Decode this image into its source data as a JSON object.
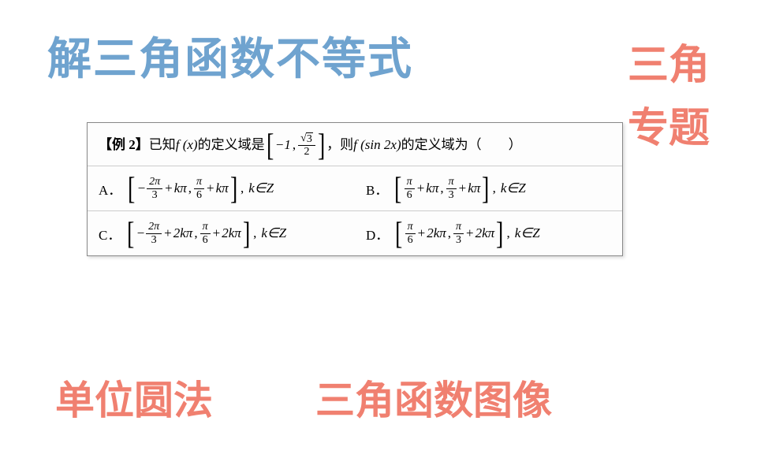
{
  "colors": {
    "title_blue": "#6fa3cf",
    "coral": "#f08070",
    "text_black": "#222222",
    "border": "#888888"
  },
  "title_main": "解三角函数不等式",
  "side_label_1": "三角",
  "side_label_2": "专题",
  "bottom_label_1": "单位圆法",
  "bottom_label_2": "三角函数图像",
  "problem": {
    "label": "【例 2】",
    "stem_part1": "已知 ",
    "fx": "f (x)",
    "stem_part2": " 的定义域是",
    "domain_lower": "−1",
    "domain_upper_num_sqrt": "3",
    "domain_upper_den": "2",
    "stem_part3": "，则 ",
    "fsin2x": "f (sin 2x)",
    "stem_part4": " 的定义域为（　　）",
    "options": {
      "A": {
        "label": "A．",
        "t1_sign": "−",
        "t1_num": "2π",
        "t1_den": "3",
        "t1_suffix": "kπ",
        "t2_num": "π",
        "t2_den": "6",
        "t2_suffix": "kπ",
        "tail": "k∈Z"
      },
      "B": {
        "label": "B．",
        "t1_num": "π",
        "t1_den": "6",
        "t1_suffix": "kπ",
        "t2_num": "π",
        "t2_den": "3",
        "t2_suffix": "kπ",
        "tail": "k∈Z"
      },
      "C": {
        "label": "C．",
        "t1_sign": "−",
        "t1_num": "2π",
        "t1_den": "3",
        "t1_suffix": "2kπ",
        "t2_num": "π",
        "t2_den": "6",
        "t2_suffix": "2kπ",
        "tail": "k∈Z"
      },
      "D": {
        "label": "D．",
        "t1_num": "π",
        "t1_den": "6",
        "t1_suffix": "2kπ",
        "t2_num": "π",
        "t2_den": "3",
        "t2_suffix": "2kπ",
        "tail": "k∈Z"
      }
    }
  }
}
